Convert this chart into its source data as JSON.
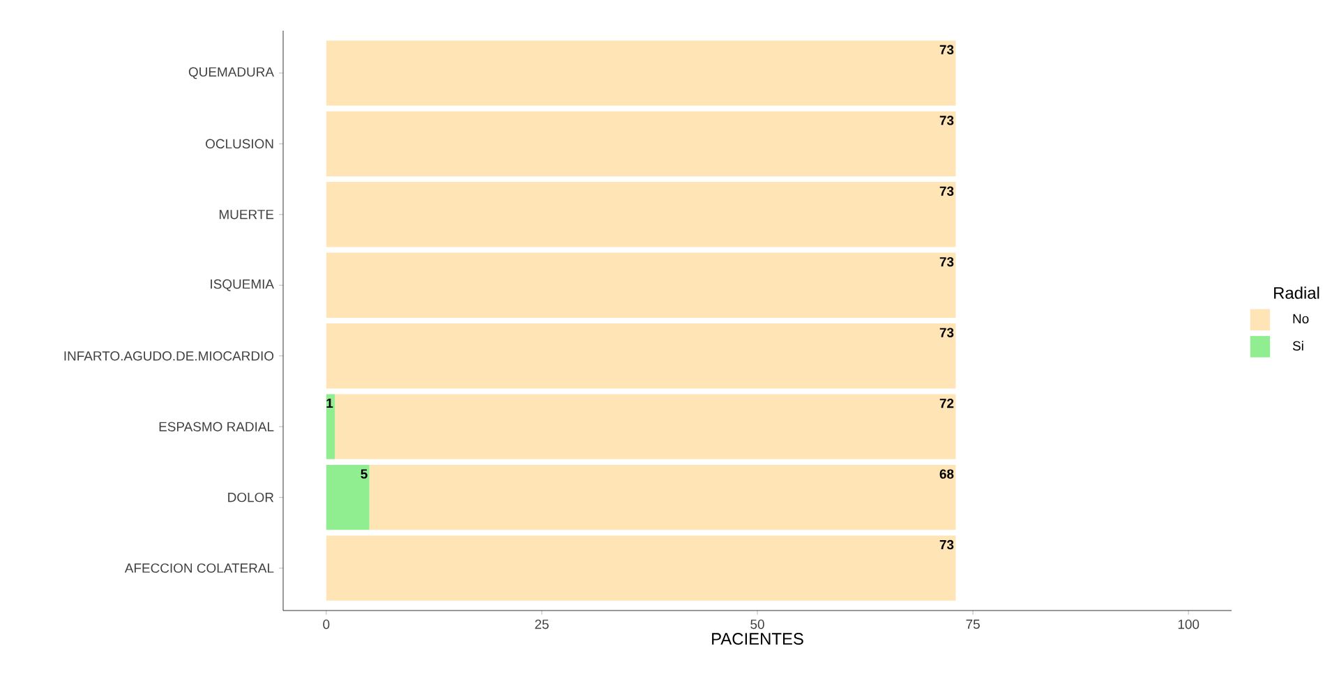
{
  "chart_data": {
    "type": "bar",
    "orientation": "horizontal",
    "stacked": true,
    "categories": [
      "QUEMADURA",
      "OCLUSION",
      "MUERTE",
      "ISQUEMIA",
      "INFARTO.AGUDO.DE.MIOCARDIO",
      "ESPASMO RADIAL",
      "DOLOR",
      "AFECCION COLATERAL"
    ],
    "series": [
      {
        "name": "Si",
        "color": "#90ee90",
        "values": [
          0,
          0,
          0,
          0,
          0,
          1,
          5,
          0
        ],
        "value_labels": [
          null,
          null,
          null,
          null,
          null,
          "1",
          "5",
          null
        ]
      },
      {
        "name": "No",
        "color": "#ffe4b5",
        "values": [
          73,
          73,
          73,
          73,
          73,
          72,
          68,
          73
        ],
        "value_labels": [
          "73",
          "73",
          "73",
          "73",
          "73",
          "72",
          "68",
          "73"
        ]
      }
    ],
    "xlim": [
      -5,
      105
    ],
    "xticks": [
      0,
      25,
      50,
      75,
      100
    ],
    "xlabel": "PACIENTES",
    "legend": "right",
    "legend_title": "Radial"
  }
}
